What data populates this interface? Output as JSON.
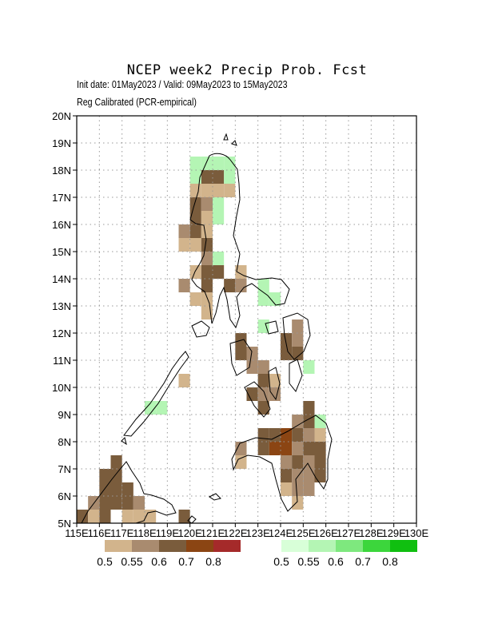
{
  "title": "NCEP week2 Precip Prob. Fcst",
  "subtitle_1": "Init date: 01May2023 / Valid: 09May2023 to 15May2023",
  "subtitle_2": "Reg Calibrated (PCR-empirical)",
  "map": {
    "lon_range": [
      115,
      130
    ],
    "lat_range": [
      5,
      20
    ],
    "grid": true,
    "lon_labels": [
      "115E",
      "116E",
      "117E",
      "118E",
      "119E",
      "120E",
      "121E",
      "122E",
      "123E",
      "124E",
      "125E",
      "126E",
      "127E",
      "128E",
      "129E",
      "130E"
    ],
    "lat_labels": [
      "5N",
      "6N",
      "7N",
      "8N",
      "9N",
      "10N",
      "11N",
      "12N",
      "13N",
      "14N",
      "15N",
      "16N",
      "17N",
      "18N",
      "19N",
      "20N"
    ],
    "cells": [
      [
        120,
        18,
        "g1"
      ],
      [
        120.5,
        18,
        "g1"
      ],
      [
        121,
        18,
        "g1"
      ],
      [
        121.5,
        18,
        "g1"
      ],
      [
        120,
        17.5,
        "g1"
      ],
      [
        120.5,
        17.5,
        "b3"
      ],
      [
        121,
        17.5,
        "b3"
      ],
      [
        121.5,
        17.5,
        "g1"
      ],
      [
        120,
        17,
        "b1"
      ],
      [
        120.5,
        17,
        "b1"
      ],
      [
        121,
        17,
        "b1"
      ],
      [
        121.5,
        17,
        "b1"
      ],
      [
        120,
        16.5,
        "b3"
      ],
      [
        120.5,
        16.5,
        "b2"
      ],
      [
        121,
        16.5,
        "g1"
      ],
      [
        120,
        16,
        "b3"
      ],
      [
        120.5,
        16,
        "b1"
      ],
      [
        121,
        16,
        "g1"
      ],
      [
        119.5,
        15.5,
        "b2"
      ],
      [
        120,
        15.5,
        "b3"
      ],
      [
        120.5,
        15.5,
        "b1"
      ],
      [
        119.5,
        15,
        "b1"
      ],
      [
        120,
        15,
        "b1"
      ],
      [
        120.5,
        15,
        "b3"
      ],
      [
        120.5,
        14.5,
        "b2"
      ],
      [
        121,
        14.5,
        "g1"
      ],
      [
        120,
        14,
        "b1"
      ],
      [
        120.5,
        14,
        "b3"
      ],
      [
        121,
        14,
        "b3"
      ],
      [
        122,
        14,
        "b1"
      ],
      [
        119.5,
        13.5,
        "b2"
      ],
      [
        120.5,
        13.5,
        "b3"
      ],
      [
        121.5,
        13.5,
        "b3"
      ],
      [
        122,
        13.5,
        "b2"
      ],
      [
        123,
        13.5,
        "g1"
      ],
      [
        120,
        13,
        "b1"
      ],
      [
        120.5,
        13,
        "b1"
      ],
      [
        123,
        13,
        "g1"
      ],
      [
        123.5,
        13,
        "g1"
      ],
      [
        120.5,
        12.5,
        "b1"
      ],
      [
        123,
        12,
        "g1"
      ],
      [
        124.5,
        12,
        "b2"
      ],
      [
        122,
        11.5,
        "b3"
      ],
      [
        124,
        11.5,
        "b3"
      ],
      [
        124.5,
        11.5,
        "b2"
      ],
      [
        122,
        11,
        "b3"
      ],
      [
        122.5,
        11,
        "b2"
      ],
      [
        124,
        11,
        "b3"
      ],
      [
        124.5,
        11,
        "b3"
      ],
      [
        122.5,
        10.5,
        "b2"
      ],
      [
        123,
        10.5,
        "b2"
      ],
      [
        125,
        10.5,
        "g1"
      ],
      [
        123,
        10,
        "b3"
      ],
      [
        123.5,
        10,
        "b1"
      ],
      [
        122.5,
        9.5,
        "b3"
      ],
      [
        123,
        9.5,
        "b2"
      ],
      [
        123.5,
        9.5,
        "b2"
      ],
      [
        123,
        9,
        "b3"
      ],
      [
        125,
        9,
        "b3"
      ],
      [
        124.5,
        8.5,
        "b2"
      ],
      [
        125,
        8.5,
        "b3"
      ],
      [
        125.5,
        8.5,
        "g1"
      ],
      [
        123,
        8,
        "b3"
      ],
      [
        123.5,
        8,
        "b3"
      ],
      [
        124,
        8,
        "b4"
      ],
      [
        124.5,
        8,
        "b3"
      ],
      [
        125,
        8,
        "b2"
      ],
      [
        125.5,
        8,
        "b1"
      ],
      [
        122,
        7.5,
        "b2"
      ],
      [
        123,
        7.5,
        "b3"
      ],
      [
        123.5,
        7.5,
        "b4"
      ],
      [
        124,
        7.5,
        "b4"
      ],
      [
        124.5,
        7.5,
        "b2"
      ],
      [
        125,
        7.5,
        "b3"
      ],
      [
        125.5,
        7.5,
        "b3"
      ],
      [
        122,
        7,
        "b1"
      ],
      [
        124,
        7,
        "b2"
      ],
      [
        124.5,
        7,
        "b3"
      ],
      [
        125,
        7,
        "b2"
      ],
      [
        125.5,
        7,
        "b3"
      ],
      [
        124,
        6.5,
        "b3"
      ],
      [
        124.5,
        6.5,
        "b2"
      ],
      [
        125,
        6.5,
        "b2"
      ],
      [
        125.5,
        6.5,
        "b3"
      ],
      [
        124,
        6,
        "b1"
      ],
      [
        124.5,
        6,
        "b2"
      ],
      [
        125,
        6,
        "b2"
      ],
      [
        124.5,
        5.5,
        "b1"
      ],
      [
        116.5,
        7,
        "b3"
      ],
      [
        116,
        6.5,
        "b3"
      ],
      [
        116.5,
        6.5,
        "b3"
      ],
      [
        116,
        6,
        "b3"
      ],
      [
        116.5,
        6,
        "b3"
      ],
      [
        117,
        6,
        "b3"
      ],
      [
        115.5,
        5.5,
        "b2"
      ],
      [
        116,
        5.5,
        "b3"
      ],
      [
        116.5,
        5.5,
        "b3"
      ],
      [
        117,
        5.5,
        "b3"
      ],
      [
        117.5,
        5.5,
        "b2"
      ],
      [
        115,
        5,
        "b3"
      ],
      [
        115.5,
        5,
        "b1"
      ],
      [
        116,
        5,
        "b3"
      ],
      [
        117,
        5,
        "b1"
      ],
      [
        117.5,
        5,
        "b1"
      ],
      [
        118,
        5,
        "b1"
      ],
      [
        119.5,
        5,
        "b3"
      ],
      [
        118,
        9,
        "g1"
      ],
      [
        118.5,
        9,
        "g1"
      ],
      [
        119.5,
        10,
        "b1"
      ]
    ]
  },
  "legend_below": {
    "values": [
      "0.5",
      "0.55",
      "0.6",
      "0.7",
      "0.8"
    ],
    "colors": [
      "#d2b48c",
      "#a98b6f",
      "#7a5c3c",
      "#8b4513",
      "#a52a2a"
    ]
  },
  "legend_above": {
    "values": [
      "0.5",
      "0.55",
      "0.6",
      "0.7",
      "0.8"
    ],
    "colors": [
      "#d8ffd8",
      "#b4f5b4",
      "#7ee87e",
      "#3cd63c",
      "#10bf10"
    ]
  },
  "cell_colors": {
    "b1": "#d2b48c",
    "b2": "#a98b6f",
    "b3": "#7a5c3c",
    "b4": "#8b4513",
    "g1": "#b4f5b4"
  }
}
